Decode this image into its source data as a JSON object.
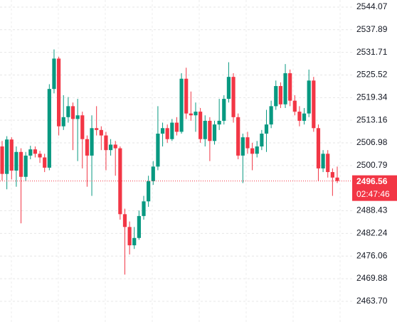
{
  "chart_data": {
    "type": "candlestick",
    "series": [
      {
        "up_color": "#089981",
        "down_color": "#f23645",
        "open": [
          2506.0,
          2498.5,
          2507.9,
          2499.4,
          2504.5,
          2497.7,
          2503.5,
          2505.2,
          2504.0,
          2503.0,
          2500.2,
          2521.7,
          2530.0,
          2511.5,
          2514.0,
          2517.0,
          2513.5,
          2514.5,
          2508.0,
          2503.5,
          2511.0,
          2510.5,
          2509.0,
          2505.0,
          2506.5,
          2505.5,
          2487.5,
          2484.0,
          2479.0,
          2481.0,
          2487.0,
          2491.0,
          2496.5,
          2500.5,
          2509.5,
          2511.0,
          2508.0,
          2512.5,
          2510.0,
          2524.5,
          2515.0,
          2514.5,
          2515.5,
          2508.0,
          2513.0,
          2507.5,
          2512.0,
          2513.0,
          2519.0,
          2525.0,
          2514.0,
          2503.5,
          2508.5,
          2505.5,
          2504.0,
          2506.0,
          2509.5,
          2512.0,
          2517.0,
          2522.5,
          2517.5,
          2526.0,
          2518.5,
          2515.5,
          2513.0,
          2515.0,
          2524.0,
          2511.0,
          2500.0,
          2504.0,
          2499.0,
          2497.5
        ],
        "high": [
          2507.5,
          2508.8,
          2508.5,
          2506.0,
          2505.5,
          2504.5,
          2506.2,
          2506.0,
          2504.8,
          2504.0,
          2523.0,
          2532.5,
          2530.5,
          2520.0,
          2519.5,
          2518.0,
          2519.0,
          2515.5,
          2509.0,
          2514.5,
          2517.0,
          2511.5,
          2510.0,
          2508.0,
          2507.5,
          2506.0,
          2489.0,
          2485.5,
          2484.0,
          2488.5,
          2492.5,
          2498.0,
          2502.0,
          2517.0,
          2512.5,
          2512.0,
          2513.5,
          2514.0,
          2526.0,
          2527.5,
          2521.0,
          2518.0,
          2516.5,
          2514.5,
          2514.0,
          2513.0,
          2519.0,
          2520.0,
          2529.0,
          2526.0,
          2515.0,
          2509.5,
          2510.0,
          2507.0,
          2507.5,
          2510.5,
          2516.0,
          2518.5,
          2524.0,
          2523.5,
          2528.5,
          2527.0,
          2520.0,
          2517.0,
          2516.5,
          2527.0,
          2525.0,
          2512.0,
          2505.0,
          2505.0,
          2500.0,
          2500.5
        ],
        "low": [
          2496.7,
          2494.3,
          2497.0,
          2495.0,
          2485.0,
          2496.5,
          2502.5,
          2503.0,
          2501.5,
          2499.0,
          2499.5,
          2520.5,
          2509.0,
          2510.5,
          2512.5,
          2505.0,
          2502.0,
          2500.0,
          2495.0,
          2492.5,
          2509.0,
          2505.0,
          2499.5,
          2503.5,
          2498.0,
          2486.0,
          2471.0,
          2476.5,
          2478.0,
          2480.5,
          2486.0,
          2489.5,
          2495.5,
          2499.5,
          2506.0,
          2507.0,
          2507.5,
          2509.0,
          2509.5,
          2513.5,
          2513.0,
          2510.0,
          2507.0,
          2506.0,
          2502.0,
          2506.5,
          2510.5,
          2512.0,
          2518.0,
          2512.5,
          2502.5,
          2496.0,
          2504.0,
          2499.5,
          2503.0,
          2505.0,
          2504.5,
          2511.0,
          2516.0,
          2516.5,
          2516.5,
          2517.0,
          2514.5,
          2511.5,
          2512.0,
          2514.0,
          2510.0,
          2496.5,
          2499.0,
          2497.5,
          2492.5,
          2496.0
        ],
        "close": [
          2498.5,
          2507.9,
          2499.4,
          2504.5,
          2497.7,
          2503.5,
          2505.2,
          2504.0,
          2503.0,
          2500.2,
          2521.7,
          2530.0,
          2511.5,
          2514.0,
          2517.0,
          2513.5,
          2514.5,
          2508.0,
          2503.5,
          2511.0,
          2510.5,
          2509.0,
          2505.0,
          2506.5,
          2505.5,
          2487.5,
          2484.0,
          2479.0,
          2481.0,
          2487.0,
          2491.0,
          2496.5,
          2500.5,
          2509.5,
          2511.0,
          2508.0,
          2512.5,
          2510.0,
          2524.5,
          2515.0,
          2514.5,
          2515.5,
          2508.0,
          2513.0,
          2507.5,
          2512.0,
          2513.0,
          2519.0,
          2525.0,
          2514.0,
          2503.5,
          2508.5,
          2505.5,
          2504.0,
          2506.0,
          2509.5,
          2512.0,
          2517.0,
          2522.5,
          2517.5,
          2526.0,
          2518.5,
          2515.5,
          2513.0,
          2515.0,
          2524.0,
          2511.0,
          2500.0,
          2504.0,
          2499.0,
          2497.5,
          2496.56
        ]
      }
    ],
    "countdown": "02:47:46",
    "ylim": [
      2458.05,
      2546.0
    ],
    "yticks": [
      2544.07,
      2537.89,
      2531.71,
      2525.52,
      2519.34,
      2513.16,
      2506.98,
      2500.79,
      2488.43,
      2482.24,
      2476.06,
      2469.88,
      {
        "value": 2463.7,
        "label": "2463.70"
      }
    ],
    "grid": true
  }
}
